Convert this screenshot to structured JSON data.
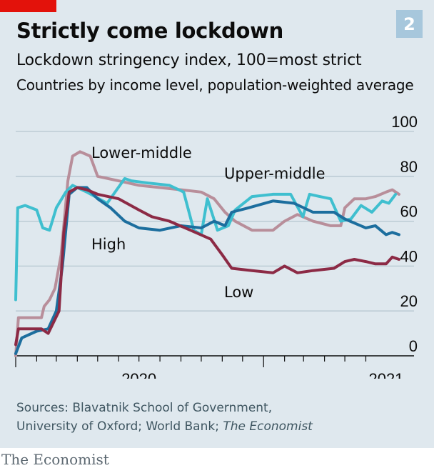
{
  "badge": "2",
  "title": "Strictly come lockdown",
  "subtitle": "Lockdown stringency index, 100=most strict",
  "subtitle2": "Countries by income level, population-weighted average",
  "source_line1": "Sources: Blavatnik School of Government,",
  "source_line2a": "University of Oxford; World Bank; ",
  "source_line2b": "The Economist",
  "brand": "The Economist",
  "colors": {
    "panel": "#dfe8ee",
    "badge": "#a7c7dc",
    "red_tag": "#e3120b",
    "high": "#1c6e9e",
    "upper_middle": "#3fbfcf",
    "lower_middle": "#b88e9a",
    "low": "#8c2a45"
  },
  "chart_data": {
    "type": "line",
    "ylim": [
      0,
      100
    ],
    "yticks": [
      0,
      20,
      40,
      60,
      80,
      100
    ],
    "xlim": [
      "2020-01-01",
      "2021-06-30"
    ],
    "xtick_labels": [
      "2020",
      "2021"
    ],
    "grid": true,
    "series": [
      {
        "name": "Lower-middle",
        "color": "#b88e9a",
        "points": [
          [
            "2020-01-01",
            0
          ],
          [
            "2020-01-05",
            17
          ],
          [
            "2020-02-08",
            17
          ],
          [
            "2020-02-12",
            22
          ],
          [
            "2020-02-20",
            25
          ],
          [
            "2020-02-28",
            30
          ],
          [
            "2020-03-08",
            45
          ],
          [
            "2020-03-18",
            78
          ],
          [
            "2020-03-25",
            89
          ],
          [
            "2020-04-05",
            91
          ],
          [
            "2020-04-20",
            89
          ],
          [
            "2020-05-01",
            80
          ],
          [
            "2020-06-01",
            78
          ],
          [
            "2020-07-01",
            76
          ],
          [
            "2020-08-01",
            75
          ],
          [
            "2020-09-01",
            74
          ],
          [
            "2020-10-01",
            73
          ],
          [
            "2020-10-20",
            70
          ],
          [
            "2020-11-05",
            64
          ],
          [
            "2020-11-20",
            60
          ],
          [
            "2020-12-15",
            56
          ],
          [
            "2021-01-15",
            56
          ],
          [
            "2021-02-01",
            60
          ],
          [
            "2021-02-20",
            63
          ],
          [
            "2021-03-15",
            60
          ],
          [
            "2021-04-10",
            58
          ],
          [
            "2021-04-25",
            58
          ],
          [
            "2021-05-01",
            66
          ],
          [
            "2021-05-15",
            70
          ],
          [
            "2021-06-01",
            70
          ],
          [
            "2021-06-15",
            71
          ],
          [
            "2021-07-01",
            73
          ],
          [
            "2021-07-10",
            74
          ],
          [
            "2021-07-20",
            72
          ]
        ]
      },
      {
        "name": "Upper-middle",
        "color": "#3fbfcf",
        "points": [
          [
            "2020-01-01",
            25
          ],
          [
            "2020-01-04",
            66
          ],
          [
            "2020-01-15",
            67
          ],
          [
            "2020-02-01",
            65
          ],
          [
            "2020-02-10",
            57
          ],
          [
            "2020-02-20",
            56
          ],
          [
            "2020-03-01",
            66
          ],
          [
            "2020-03-15",
            73
          ],
          [
            "2020-03-25",
            76
          ],
          [
            "2020-04-15",
            73
          ],
          [
            "2020-05-15",
            68
          ],
          [
            "2020-06-10",
            79
          ],
          [
            "2020-06-20",
            78
          ],
          [
            "2020-07-15",
            77
          ],
          [
            "2020-08-15",
            76
          ],
          [
            "2020-09-05",
            73
          ],
          [
            "2020-09-20",
            56
          ],
          [
            "2020-10-01",
            54
          ],
          [
            "2020-10-10",
            70
          ],
          [
            "2020-10-25",
            56
          ],
          [
            "2020-11-10",
            58
          ],
          [
            "2020-11-20",
            65
          ],
          [
            "2020-12-15",
            71
          ],
          [
            "2021-01-15",
            72
          ],
          [
            "2021-02-10",
            72
          ],
          [
            "2021-02-28",
            62
          ],
          [
            "2021-03-10",
            72
          ],
          [
            "2021-03-25",
            71
          ],
          [
            "2021-04-10",
            70
          ],
          [
            "2021-04-25",
            60
          ],
          [
            "2021-05-10",
            61
          ],
          [
            "2021-05-25",
            67
          ],
          [
            "2021-06-10",
            64
          ],
          [
            "2021-06-25",
            69
          ],
          [
            "2021-07-05",
            68
          ],
          [
            "2021-07-15",
            72
          ]
        ]
      },
      {
        "name": "High",
        "color": "#1c6e9e",
        "points": [
          [
            "2020-01-01",
            1
          ],
          [
            "2020-01-10",
            8
          ],
          [
            "2020-02-01",
            11
          ],
          [
            "2020-02-18",
            12
          ],
          [
            "2020-03-01",
            20
          ],
          [
            "2020-03-10",
            40
          ],
          [
            "2020-03-20",
            72
          ],
          [
            "2020-04-01",
            75
          ],
          [
            "2020-04-15",
            75
          ],
          [
            "2020-05-01",
            70
          ],
          [
            "2020-05-20",
            66
          ],
          [
            "2020-06-10",
            60
          ],
          [
            "2020-07-01",
            57
          ],
          [
            "2020-08-01",
            56
          ],
          [
            "2020-09-01",
            58
          ],
          [
            "2020-10-01",
            57
          ],
          [
            "2020-10-20",
            60
          ],
          [
            "2020-11-05",
            58
          ],
          [
            "2020-11-15",
            64
          ],
          [
            "2020-12-10",
            66
          ],
          [
            "2021-01-15",
            69
          ],
          [
            "2021-02-15",
            68
          ],
          [
            "2021-03-15",
            64
          ],
          [
            "2021-04-15",
            64
          ],
          [
            "2021-05-01",
            61
          ],
          [
            "2021-06-01",
            57
          ],
          [
            "2021-06-15",
            58
          ],
          [
            "2021-07-01",
            54
          ],
          [
            "2021-07-10",
            55
          ],
          [
            "2021-07-20",
            54
          ]
        ]
      },
      {
        "name": "Low",
        "color": "#8c2a45",
        "points": [
          [
            "2020-01-01",
            5
          ],
          [
            "2020-01-05",
            12
          ],
          [
            "2020-02-08",
            12
          ],
          [
            "2020-02-18",
            10
          ],
          [
            "2020-03-05",
            20
          ],
          [
            "2020-03-12",
            55
          ],
          [
            "2020-03-20",
            73
          ],
          [
            "2020-04-01",
            75
          ],
          [
            "2020-04-15",
            74
          ],
          [
            "2020-05-01",
            72
          ],
          [
            "2020-06-01",
            70
          ],
          [
            "2020-07-01",
            65
          ],
          [
            "2020-07-20",
            62
          ],
          [
            "2020-08-15",
            60
          ],
          [
            "2020-09-15",
            56
          ],
          [
            "2020-10-15",
            52
          ],
          [
            "2020-11-01",
            45
          ],
          [
            "2020-11-15",
            39
          ],
          [
            "2020-12-15",
            38
          ],
          [
            "2021-01-15",
            37
          ],
          [
            "2021-02-01",
            40
          ],
          [
            "2021-02-20",
            37
          ],
          [
            "2021-03-15",
            38
          ],
          [
            "2021-04-15",
            39
          ],
          [
            "2021-05-01",
            42
          ],
          [
            "2021-05-15",
            43
          ],
          [
            "2021-06-01",
            42
          ],
          [
            "2021-06-15",
            41
          ],
          [
            "2021-07-01",
            41
          ],
          [
            "2021-07-10",
            44
          ],
          [
            "2021-07-20",
            43
          ]
        ]
      }
    ],
    "series_labels": [
      "Lower-middle",
      "Upper-middle",
      "High",
      "Low"
    ]
  }
}
